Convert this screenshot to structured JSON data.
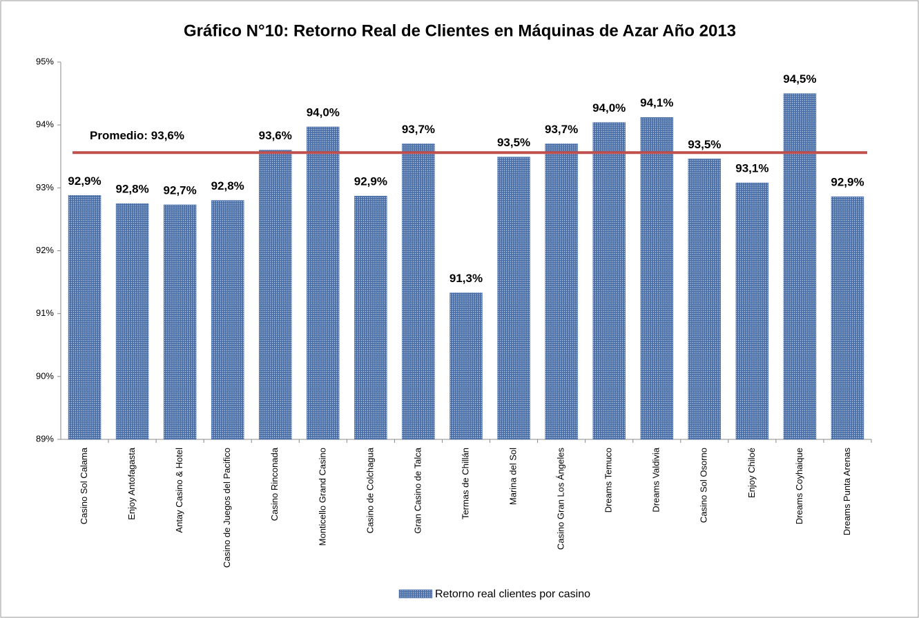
{
  "chart_data": {
    "type": "bar",
    "title": "Gráfico N°10:  Retorno Real de Clientes en Máquinas de Azar Año 2013",
    "categories": [
      "Casino Sol Calama",
      "Enjoy Antofagasta",
      "Antay Casino & Hotel",
      "Casino de Juegos del Pacifico",
      "Casino Rinconada",
      "Monticello Grand Casino",
      "Casino de Colchagua",
      "Gran Casino de Talca",
      "Termas de Chillán",
      "Marina del Sol",
      "Casino Gran Los Ángeles",
      "Dreams Temuco",
      "Dreams Valdivia",
      "Casino Sol Osorno",
      "Enjoy Chiloé",
      "Dreams Coyhaique",
      "Dreams Punta Arenas"
    ],
    "series": [
      {
        "name": "Retorno real clientes por casino",
        "color": "#4a6fa8",
        "values": [
          92.88,
          92.75,
          92.73,
          92.8,
          93.6,
          93.97,
          92.87,
          93.7,
          91.33,
          93.49,
          93.7,
          94.04,
          94.12,
          93.46,
          93.08,
          94.5,
          92.86
        ],
        "value_labels": [
          "92,9%",
          "92,8%",
          "92,7%",
          "92,8%",
          "93,6%",
          "94,0%",
          "92,9%",
          "93,7%",
          "91,3%",
          "93,5%",
          "93,7%",
          "94,0%",
          "94,1%",
          "93,5%",
          "93,1%",
          "94,5%",
          "92,9%"
        ]
      }
    ],
    "average": {
      "value": 93.56,
      "label": "Promedio: 93,6%",
      "color": "#c0504d"
    },
    "ylim": [
      89,
      95
    ],
    "yticks": [
      {
        "value": 89,
        "label": "89%"
      },
      {
        "value": 90,
        "label": "90%"
      },
      {
        "value": 91,
        "label": "91%"
      },
      {
        "value": 92,
        "label": "92%"
      },
      {
        "value": 93,
        "label": "93%"
      },
      {
        "value": 94,
        "label": "94%"
      },
      {
        "value": 95,
        "label": "95%"
      }
    ],
    "legend": "bottom"
  }
}
